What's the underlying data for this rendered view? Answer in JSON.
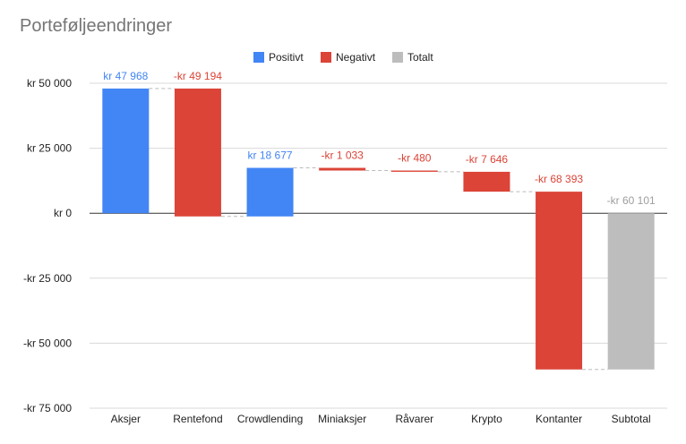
{
  "chart_data": {
    "type": "waterfall",
    "title": "Porteføljeendringer",
    "legend": {
      "placement": "top",
      "entries": [
        {
          "label": "Positivt",
          "color": "#4285f4"
        },
        {
          "label": "Negativt",
          "color": "#db4437"
        },
        {
          "label": "Totalt",
          "color": "#bdbdbd"
        }
      ]
    },
    "categories": [
      "Aksjer",
      "Rentefond",
      "Crowdlending",
      "Miniaksjer",
      "Råvarer",
      "Krypto",
      "Kontanter",
      "Subtotal"
    ],
    "values": [
      47968,
      -49194,
      18677,
      -1033,
      -480,
      -7646,
      -68393,
      -60101
    ],
    "kinds": [
      "Positivt",
      "Negativt",
      "Positivt",
      "Negativt",
      "Negativt",
      "Negativt",
      "Negativt",
      "Totalt"
    ],
    "data_labels": [
      "kr  47 968",
      "-kr  49 194",
      "kr  18 677",
      "-kr  1 033",
      "-kr   480",
      "-kr  7 646",
      "-kr  68 393",
      "-kr  60 101"
    ],
    "ylim": [
      -75000,
      50000
    ],
    "yticks": [
      50000,
      25000,
      0,
      -25000,
      -50000,
      -75000
    ],
    "ytick_labels": [
      "kr  50 000",
      "kr  25 000",
      "kr   0",
      "-kr  25 000",
      "-kr  50 000",
      "-kr  75 000"
    ],
    "grid": true,
    "connectors": true,
    "xlabel": "",
    "ylabel": ""
  }
}
